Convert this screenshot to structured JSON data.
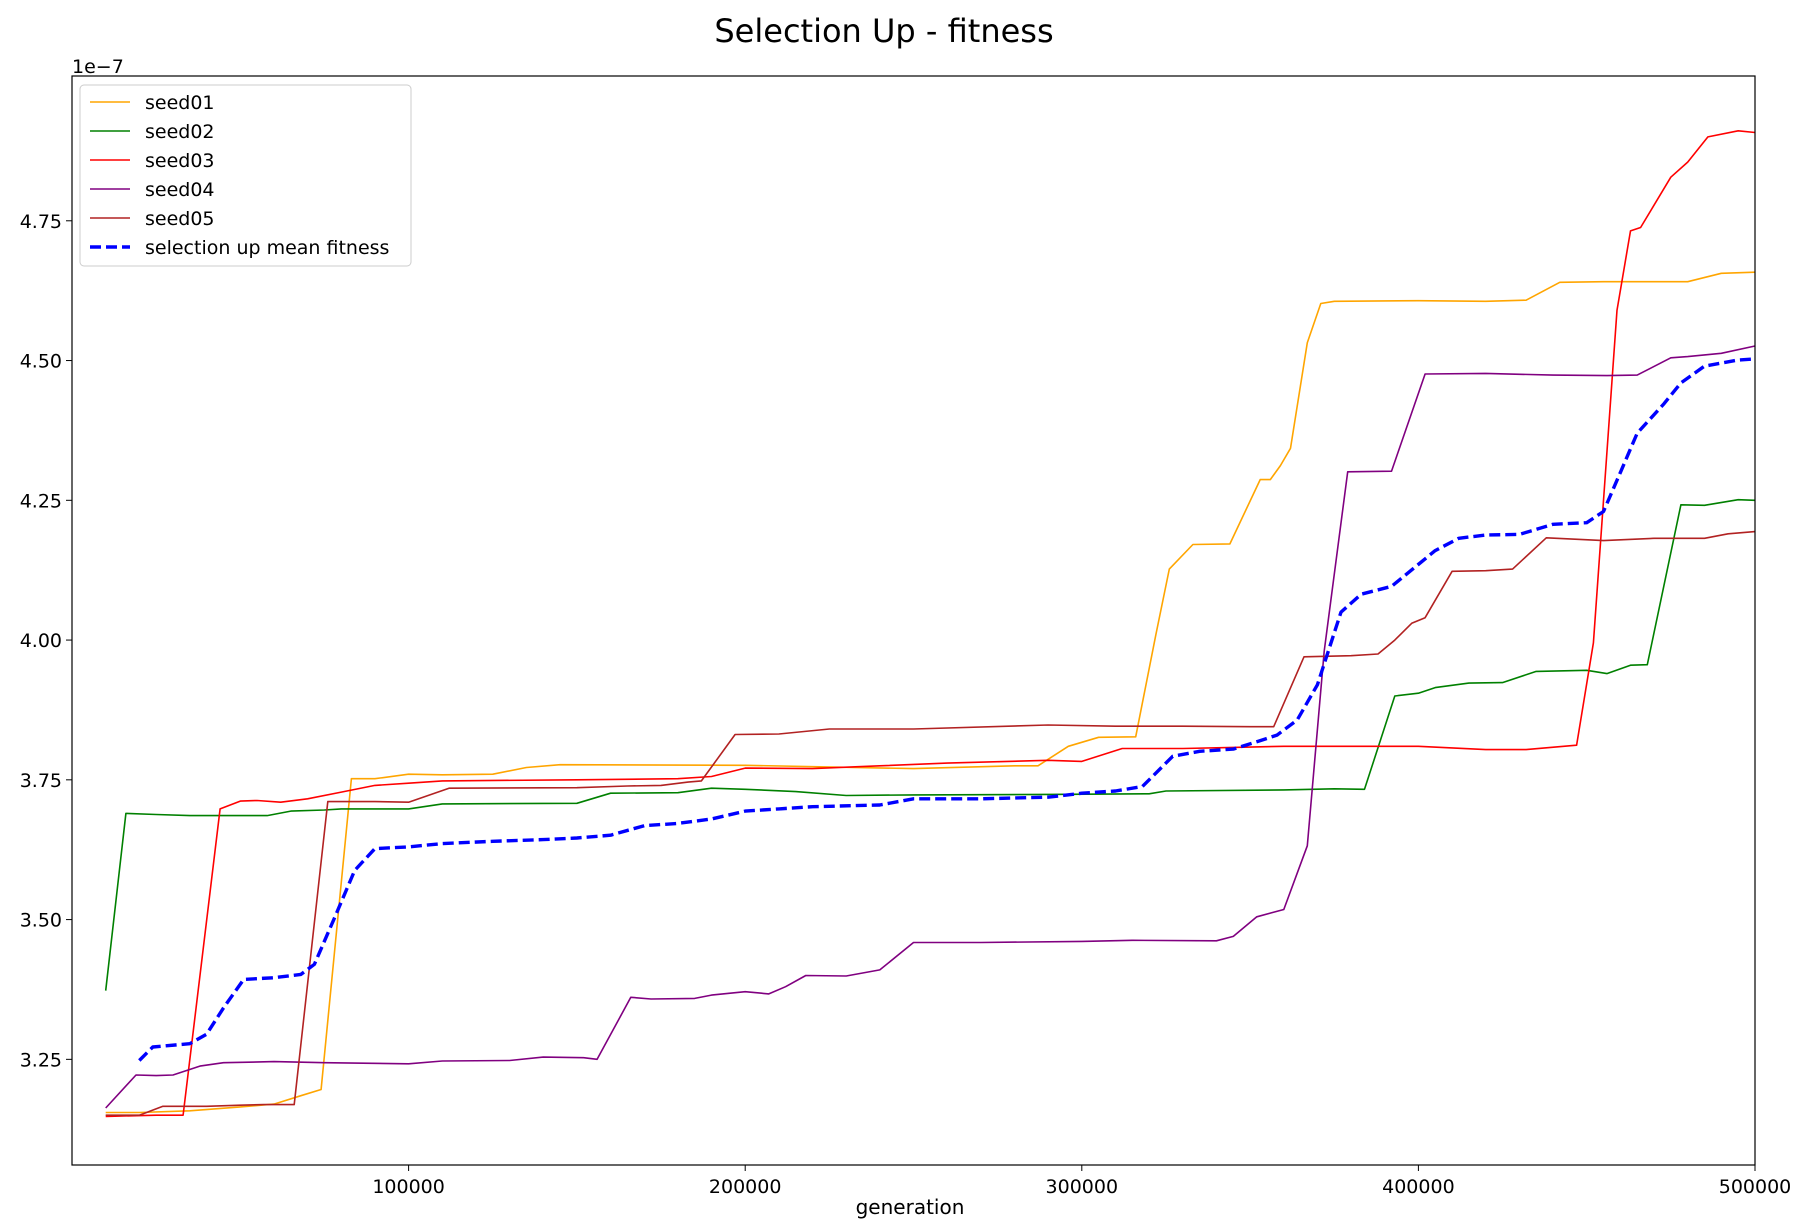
{
  "chart_data": {
    "type": "line",
    "title": "Selection Up - fitness",
    "xlabel": "generation",
    "ylabel": "",
    "y_offset_label": "1e−7",
    "xlim": [
      0,
      500000
    ],
    "ylim": [
      3.061,
      5.009
    ],
    "x_ticks": [
      100000,
      200000,
      300000,
      400000,
      500000
    ],
    "x_tick_labels": [
      "100000",
      "200000",
      "300000",
      "400000",
      "500000"
    ],
    "y_ticks": [
      3.25,
      3.5,
      3.75,
      4.0,
      4.25,
      4.5,
      4.75
    ],
    "y_tick_labels": [
      "3.25",
      "3.50",
      "3.75",
      "4.00",
      "4.25",
      "4.50",
      "4.75"
    ],
    "grid": false,
    "legend_position": "upper-left",
    "series": [
      {
        "name": "seed01",
        "color": "#FFA500",
        "dash": "solid",
        "points": [
          [
            10000,
            3.155
          ],
          [
            20000,
            3.155
          ],
          [
            35000,
            3.158
          ],
          [
            50000,
            3.165
          ],
          [
            60000,
            3.17
          ],
          [
            68000,
            3.185
          ],
          [
            74000,
            3.196
          ],
          [
            83000,
            3.752
          ],
          [
            90000,
            3.752
          ],
          [
            100000,
            3.76
          ],
          [
            110000,
            3.759
          ],
          [
            125000,
            3.76
          ],
          [
            135000,
            3.772
          ],
          [
            145000,
            3.777
          ],
          [
            200000,
            3.776
          ],
          [
            250000,
            3.77
          ],
          [
            280000,
            3.775
          ],
          [
            287000,
            3.775
          ],
          [
            296000,
            3.81
          ],
          [
            305000,
            3.826
          ],
          [
            316000,
            3.827
          ],
          [
            322000,
            4.01
          ],
          [
            326000,
            4.127
          ],
          [
            333000,
            4.171
          ],
          [
            344000,
            4.172
          ],
          [
            353000,
            4.287
          ],
          [
            356000,
            4.287
          ],
          [
            359000,
            4.312
          ],
          [
            362000,
            4.343
          ],
          [
            367000,
            4.532
          ],
          [
            371000,
            4.602
          ],
          [
            375000,
            4.606
          ],
          [
            400000,
            4.607
          ],
          [
            420000,
            4.606
          ],
          [
            432000,
            4.608
          ],
          [
            442000,
            4.64
          ],
          [
            455000,
            4.641
          ],
          [
            480000,
            4.641
          ],
          [
            490000,
            4.656
          ],
          [
            500000,
            4.658
          ]
        ]
      },
      {
        "name": "seed02",
        "color": "#008000",
        "dash": "solid",
        "points": [
          [
            10000,
            3.373
          ],
          [
            16000,
            3.69
          ],
          [
            25000,
            3.688
          ],
          [
            35000,
            3.686
          ],
          [
            50000,
            3.686
          ],
          [
            58000,
            3.686
          ],
          [
            65000,
            3.694
          ],
          [
            75000,
            3.696
          ],
          [
            80000,
            3.698
          ],
          [
            100000,
            3.698
          ],
          [
            110000,
            3.707
          ],
          [
            150000,
            3.708
          ],
          [
            160000,
            3.726
          ],
          [
            180000,
            3.727
          ],
          [
            190000,
            3.735
          ],
          [
            200000,
            3.733
          ],
          [
            215000,
            3.729
          ],
          [
            230000,
            3.722
          ],
          [
            250000,
            3.723
          ],
          [
            290000,
            3.724
          ],
          [
            320000,
            3.725
          ],
          [
            325000,
            3.73
          ],
          [
            360000,
            3.732
          ],
          [
            375000,
            3.734
          ],
          [
            384000,
            3.733
          ],
          [
            393000,
            3.9
          ],
          [
            400000,
            3.905
          ],
          [
            405000,
            3.915
          ],
          [
            415000,
            3.923
          ],
          [
            425000,
            3.924
          ],
          [
            435000,
            3.944
          ],
          [
            450000,
            3.946
          ],
          [
            456000,
            3.94
          ],
          [
            463000,
            3.955
          ],
          [
            468000,
            3.956
          ],
          [
            478000,
            4.242
          ],
          [
            485000,
            4.241
          ],
          [
            495000,
            4.251
          ],
          [
            500000,
            4.25
          ]
        ]
      },
      {
        "name": "seed03",
        "color": "#FF0000",
        "dash": "solid",
        "points": [
          [
            10000,
            3.148
          ],
          [
            25000,
            3.15
          ],
          [
            33000,
            3.15
          ],
          [
            44000,
            3.698
          ],
          [
            50000,
            3.712
          ],
          [
            55000,
            3.713
          ],
          [
            62000,
            3.71
          ],
          [
            70000,
            3.716
          ],
          [
            80000,
            3.728
          ],
          [
            90000,
            3.74
          ],
          [
            100000,
            3.744
          ],
          [
            110000,
            3.748
          ],
          [
            150000,
            3.75
          ],
          [
            180000,
            3.752
          ],
          [
            190000,
            3.756
          ],
          [
            200000,
            3.771
          ],
          [
            220000,
            3.77
          ],
          [
            240000,
            3.775
          ],
          [
            260000,
            3.78
          ],
          [
            290000,
            3.785
          ],
          [
            300000,
            3.783
          ],
          [
            312000,
            3.806
          ],
          [
            330000,
            3.806
          ],
          [
            345000,
            3.808
          ],
          [
            360000,
            3.81
          ],
          [
            380000,
            3.81
          ],
          [
            400000,
            3.81
          ],
          [
            420000,
            3.804
          ],
          [
            432000,
            3.804
          ],
          [
            447000,
            3.812
          ],
          [
            452000,
            3.995
          ],
          [
            459000,
            4.59
          ],
          [
            463000,
            4.732
          ],
          [
            466000,
            4.738
          ],
          [
            475000,
            4.828
          ],
          [
            480000,
            4.855
          ],
          [
            486000,
            4.9
          ],
          [
            495000,
            4.911
          ],
          [
            500000,
            4.908
          ]
        ]
      },
      {
        "name": "seed04",
        "color": "#800080",
        "dash": "solid",
        "points": [
          [
            10000,
            3.163
          ],
          [
            19000,
            3.222
          ],
          [
            25000,
            3.221
          ],
          [
            30000,
            3.222
          ],
          [
            38000,
            3.238
          ],
          [
            45000,
            3.244
          ],
          [
            60000,
            3.246
          ],
          [
            75000,
            3.244
          ],
          [
            100000,
            3.242
          ],
          [
            110000,
            3.247
          ],
          [
            130000,
            3.248
          ],
          [
            140000,
            3.254
          ],
          [
            152000,
            3.253
          ],
          [
            156000,
            3.25
          ],
          [
            166000,
            3.361
          ],
          [
            172000,
            3.358
          ],
          [
            185000,
            3.359
          ],
          [
            190000,
            3.365
          ],
          [
            200000,
            3.371
          ],
          [
            207000,
            3.367
          ],
          [
            212000,
            3.38
          ],
          [
            218000,
            3.4
          ],
          [
            230000,
            3.399
          ],
          [
            240000,
            3.41
          ],
          [
            250000,
            3.459
          ],
          [
            270000,
            3.459
          ],
          [
            300000,
            3.461
          ],
          [
            315000,
            3.463
          ],
          [
            340000,
            3.462
          ],
          [
            345000,
            3.47
          ],
          [
            352000,
            3.505
          ],
          [
            360000,
            3.518
          ],
          [
            367000,
            3.632
          ],
          [
            372000,
            3.98
          ],
          [
            379000,
            4.301
          ],
          [
            392000,
            4.302
          ],
          [
            402000,
            4.476
          ],
          [
            420000,
            4.477
          ],
          [
            440000,
            4.474
          ],
          [
            456000,
            4.473
          ],
          [
            465000,
            4.474
          ],
          [
            475000,
            4.505
          ],
          [
            480000,
            4.507
          ],
          [
            490000,
            4.513
          ],
          [
            500000,
            4.526
          ]
        ]
      },
      {
        "name": "seed05",
        "color": "#B22222",
        "dash": "solid",
        "points": [
          [
            10000,
            3.15
          ],
          [
            20000,
            3.15
          ],
          [
            27000,
            3.166
          ],
          [
            40000,
            3.166
          ],
          [
            50000,
            3.168
          ],
          [
            57000,
            3.169
          ],
          [
            66000,
            3.169
          ],
          [
            76000,
            3.711
          ],
          [
            90000,
            3.711
          ],
          [
            100000,
            3.71
          ],
          [
            112000,
            3.735
          ],
          [
            150000,
            3.736
          ],
          [
            165000,
            3.739
          ],
          [
            175000,
            3.74
          ],
          [
            183000,
            3.746
          ],
          [
            187000,
            3.748
          ],
          [
            197000,
            3.831
          ],
          [
            210000,
            3.832
          ],
          [
            225000,
            3.841
          ],
          [
            250000,
            3.841
          ],
          [
            290000,
            3.848
          ],
          [
            310000,
            3.846
          ],
          [
            330000,
            3.846
          ],
          [
            350000,
            3.845
          ],
          [
            357000,
            3.845
          ],
          [
            366000,
            3.97
          ],
          [
            380000,
            3.972
          ],
          [
            388000,
            3.975
          ],
          [
            393000,
            4.0
          ],
          [
            398000,
            4.03
          ],
          [
            402000,
            4.04
          ],
          [
            410000,
            4.123
          ],
          [
            420000,
            4.124
          ],
          [
            428000,
            4.127
          ],
          [
            438000,
            4.183
          ],
          [
            455000,
            4.178
          ],
          [
            470000,
            4.182
          ],
          [
            485000,
            4.182
          ],
          [
            492000,
            4.19
          ],
          [
            500000,
            4.194
          ]
        ]
      },
      {
        "name": "selection up mean fitness",
        "color": "#0000FF",
        "dash": "dashed",
        "points": [
          [
            20000,
            3.248
          ],
          [
            24000,
            3.272
          ],
          [
            35000,
            3.278
          ],
          [
            40000,
            3.295
          ],
          [
            45000,
            3.342
          ],
          [
            51000,
            3.393
          ],
          [
            60000,
            3.396
          ],
          [
            68000,
            3.402
          ],
          [
            72000,
            3.42
          ],
          [
            78000,
            3.503
          ],
          [
            84000,
            3.588
          ],
          [
            90000,
            3.627
          ],
          [
            100000,
            3.63
          ],
          [
            110000,
            3.636
          ],
          [
            125000,
            3.64
          ],
          [
            140000,
            3.643
          ],
          [
            150000,
            3.646
          ],
          [
            160000,
            3.651
          ],
          [
            170000,
            3.668
          ],
          [
            180000,
            3.672
          ],
          [
            190000,
            3.68
          ],
          [
            200000,
            3.694
          ],
          [
            210000,
            3.698
          ],
          [
            220000,
            3.702
          ],
          [
            240000,
            3.705
          ],
          [
            250000,
            3.716
          ],
          [
            270000,
            3.716
          ],
          [
            290000,
            3.719
          ],
          [
            300000,
            3.726
          ],
          [
            310000,
            3.73
          ],
          [
            318000,
            3.738
          ],
          [
            327000,
            3.792
          ],
          [
            335000,
            3.801
          ],
          [
            345000,
            3.805
          ],
          [
            352000,
            3.818
          ],
          [
            358000,
            3.83
          ],
          [
            364000,
            3.857
          ],
          [
            370000,
            3.92
          ],
          [
            377000,
            4.05
          ],
          [
            383000,
            4.082
          ],
          [
            392000,
            4.096
          ],
          [
            405000,
            4.16
          ],
          [
            412000,
            4.182
          ],
          [
            420000,
            4.188
          ],
          [
            430000,
            4.189
          ],
          [
            440000,
            4.207
          ],
          [
            450000,
            4.21
          ],
          [
            455000,
            4.23
          ],
          [
            460000,
            4.3
          ],
          [
            465000,
            4.37
          ],
          [
            473000,
            4.423
          ],
          [
            478000,
            4.46
          ],
          [
            485000,
            4.49
          ],
          [
            495000,
            4.501
          ],
          [
            500000,
            4.503
          ]
        ]
      }
    ]
  }
}
